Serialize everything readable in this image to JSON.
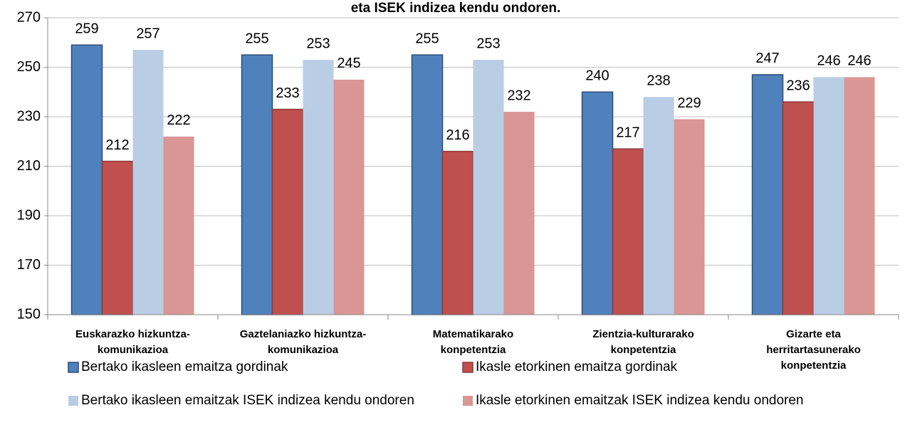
{
  "chart_data": {
    "type": "bar",
    "title": "eta ISEK indizea kendu ondoren.",
    "categories": [
      [
        "Euskarazko hizkuntza-",
        "komunikazioa"
      ],
      [
        "Gaztelaniazko hizkuntza-",
        "komunikazioa"
      ],
      [
        "Matematikarako",
        "konpetentzia"
      ],
      [
        "Zientzia-kulturarako",
        "konpetentzia"
      ],
      [
        "Gizarte eta",
        "herritartasunerako",
        "konpetentzia"
      ]
    ],
    "series": [
      {
        "name": "Bertako ikasleen emaitza gordinak",
        "color": "#4f81bd",
        "border": "#2c4d75",
        "values": [
          259,
          255,
          255,
          240,
          247
        ]
      },
      {
        "name": "Ikasle etorkinen emaitza gordinak",
        "color": "#c0504d",
        "border": "#8c3836",
        "values": [
          212,
          233,
          216,
          217,
          236
        ]
      },
      {
        "name": "Bertako ikasleen emaitzak ISEK indizea kendu ondoren",
        "color": "#b9cde5",
        "values": [
          257,
          253,
          253,
          238,
          246
        ]
      },
      {
        "name": "Ikasle etorkinen emaitzak ISEK indizea kendu ondoren",
        "color": "#d99694",
        "values": [
          222,
          245,
          232,
          229,
          246
        ]
      }
    ],
    "ylim": [
      150,
      270
    ],
    "yticks": [
      150,
      170,
      190,
      210,
      230,
      250,
      270
    ],
    "grid": true
  }
}
